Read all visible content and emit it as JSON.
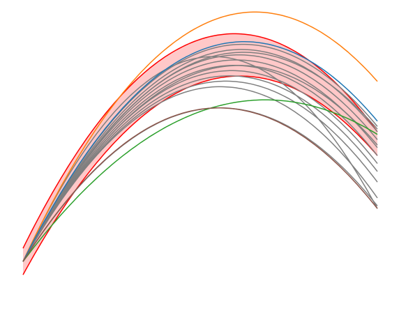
{
  "chart_data": {
    "type": "line",
    "title": "",
    "xlabel": "",
    "ylabel": "",
    "grid": false,
    "axes_visible": false,
    "legend": "none",
    "xlim": [
      0,
      1
    ],
    "ylim": [
      -0.1,
      1.0
    ],
    "band": {
      "color": "#ff0000",
      "fill": "#ffc8c8",
      "upper": {
        "x": [
          0,
          0.6,
          1
        ],
        "y": [
          0.11,
          0.92,
          0.55
        ]
      },
      "lower": {
        "x": [
          0,
          0.6,
          1
        ],
        "y": [
          0.01,
          0.76,
          0.46
        ]
      }
    },
    "series": [
      {
        "color": "#ff7f0e",
        "x": [
          0,
          0.625,
          1
        ],
        "y": [
          0.06,
          1.0,
          0.74
        ]
      },
      {
        "color": "#1f77b4",
        "x": [
          0,
          0.625,
          1
        ],
        "y": [
          0.06,
          0.89,
          0.59
        ]
      },
      {
        "color": "#2ca02c",
        "x": [
          0,
          0.7,
          1
        ],
        "y": [
          0.06,
          0.67,
          0.54
        ]
      },
      {
        "color": "#8c564b",
        "x": [
          0,
          0.55,
          1
        ],
        "y": [
          0.06,
          0.64,
          0.26
        ]
      },
      {
        "color": "#7f7f7f",
        "x": [
          0,
          0.62,
          1
        ],
        "y": [
          0.06,
          0.88,
          0.57
        ]
      },
      {
        "color": "#7f7f7f",
        "x": [
          0,
          0.6,
          1
        ],
        "y": [
          0.06,
          0.86,
          0.55
        ]
      },
      {
        "color": "#7f7f7f",
        "x": [
          0,
          0.6,
          1
        ],
        "y": [
          0.06,
          0.84,
          0.52
        ]
      },
      {
        "color": "#7f7f7f",
        "x": [
          0,
          0.58,
          1
        ],
        "y": [
          0.06,
          0.82,
          0.49
        ]
      },
      {
        "color": "#7f7f7f",
        "x": [
          0,
          0.58,
          1
        ],
        "y": [
          0.06,
          0.8,
          0.46
        ]
      },
      {
        "color": "#7f7f7f",
        "x": [
          0,
          0.57,
          1
        ],
        "y": [
          0.06,
          0.78,
          0.43
        ]
      },
      {
        "color": "#7f7f7f",
        "x": [
          0,
          0.56,
          1
        ],
        "y": [
          0.06,
          0.76,
          0.4
        ]
      },
      {
        "color": "#7f7f7f",
        "x": [
          0,
          0.55,
          1
        ],
        "y": [
          0.06,
          0.74,
          0.36
        ]
      },
      {
        "color": "#7f7f7f",
        "x": [
          0,
          0.5,
          1
        ],
        "y": [
          0.06,
          0.83,
          0.26
        ]
      },
      {
        "color": "#7f7f7f",
        "x": [
          0,
          0.55,
          1
        ],
        "y": [
          0.06,
          0.72,
          0.3
        ]
      },
      {
        "color": "#7f7f7f",
        "x": [
          0,
          0.6,
          1
        ],
        "y": [
          0.06,
          0.8,
          0.5
        ]
      },
      {
        "color": "#7f7f7f",
        "x": [
          0,
          0.62,
          1
        ],
        "y": [
          0.06,
          0.85,
          0.56
        ]
      },
      {
        "color": "#7f7f7f",
        "x": [
          0,
          0.55,
          1
        ],
        "y": [
          0.06,
          0.64,
          0.27
        ]
      }
    ]
  }
}
